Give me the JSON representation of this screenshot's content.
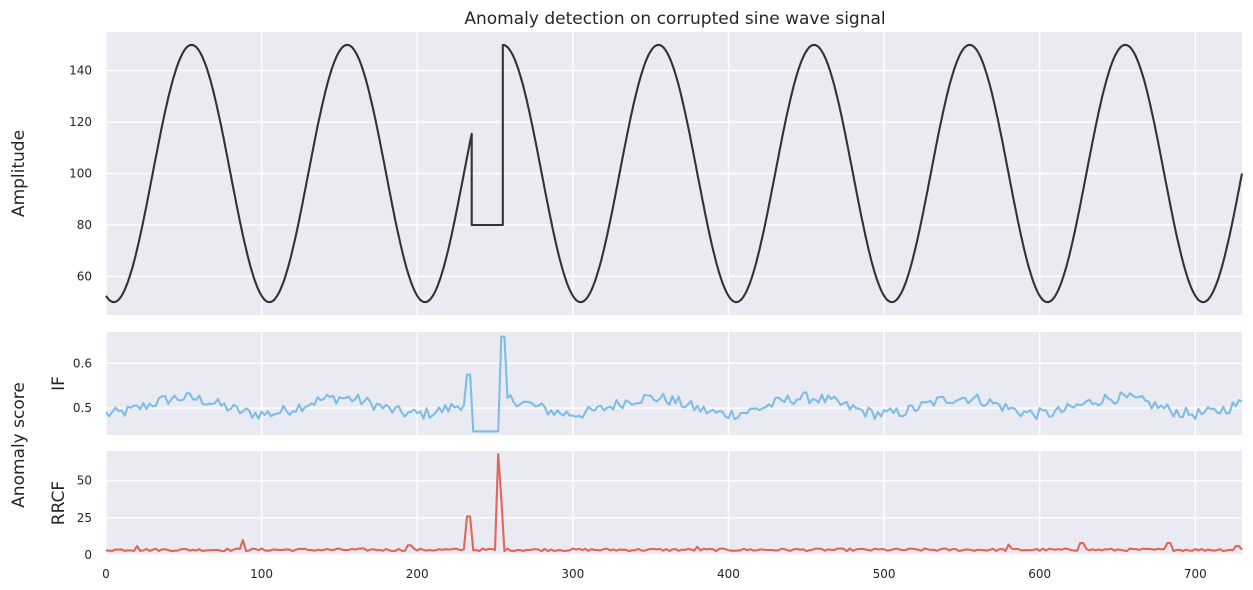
{
  "chart_data": {
    "type": "line",
    "title": "Anomaly detection on corrupted sine wave signal",
    "shared_ylabel": "Anomaly score",
    "x_ticks": [
      0,
      100,
      200,
      300,
      400,
      500,
      600,
      700
    ],
    "xlim": [
      0,
      730
    ],
    "panels": [
      {
        "id": "signal",
        "ylabel": "Amplitude",
        "ylim": [
          45,
          155
        ],
        "yticks": [
          60,
          80,
          100,
          120,
          140
        ],
        "series": [
          {
            "color": "#333333",
            "model": {
              "kind": "corrupted_sine",
              "period": 100,
              "min": 50,
              "max": 150,
              "corruption": {
                "start": 235,
                "end": 255,
                "value": 80
              }
            }
          }
        ]
      },
      {
        "id": "if",
        "ylabel": "IF",
        "ylim": [
          0.44,
          0.67
        ],
        "yticks": [
          0.5,
          0.6
        ],
        "series": [
          {
            "color": "#7dbde6",
            "model": {
              "kind": "periodic_score",
              "period": 100,
              "base": 0.505,
              "amplitude": 0.018,
              "noise": 0.013,
              "spikes": [
                {
                  "x": 233,
                  "y": 0.575
                },
                {
                  "x": 255,
                  "y": 0.66
                }
              ],
              "flat": {
                "start": 235,
                "end": 252,
                "value": 0.448
              }
            }
          }
        ]
      },
      {
        "id": "rrcf",
        "ylabel": "RRCF",
        "ylim": [
          0,
          70
        ],
        "yticks": [
          0,
          25,
          50
        ],
        "series": [
          {
            "color": "#e2665a",
            "model": {
              "kind": "noise_score",
              "base": 3.5,
              "noise": 0.9,
              "spikes": [
                {
                  "x": 20,
                  "y": 6
                },
                {
                  "x": 88,
                  "y": 10
                },
                {
                  "x": 195,
                  "y": 6.5
                },
                {
                  "x": 233,
                  "y": 26
                },
                {
                  "x": 252,
                  "y": 68
                },
                {
                  "x": 254,
                  "y": 38
                },
                {
                  "x": 380,
                  "y": 5.5
                },
                {
                  "x": 580,
                  "y": 7
                },
                {
                  "x": 627,
                  "y": 8
                },
                {
                  "x": 683,
                  "y": 8
                },
                {
                  "x": 727,
                  "y": 6
                }
              ]
            }
          }
        ]
      }
    ]
  }
}
